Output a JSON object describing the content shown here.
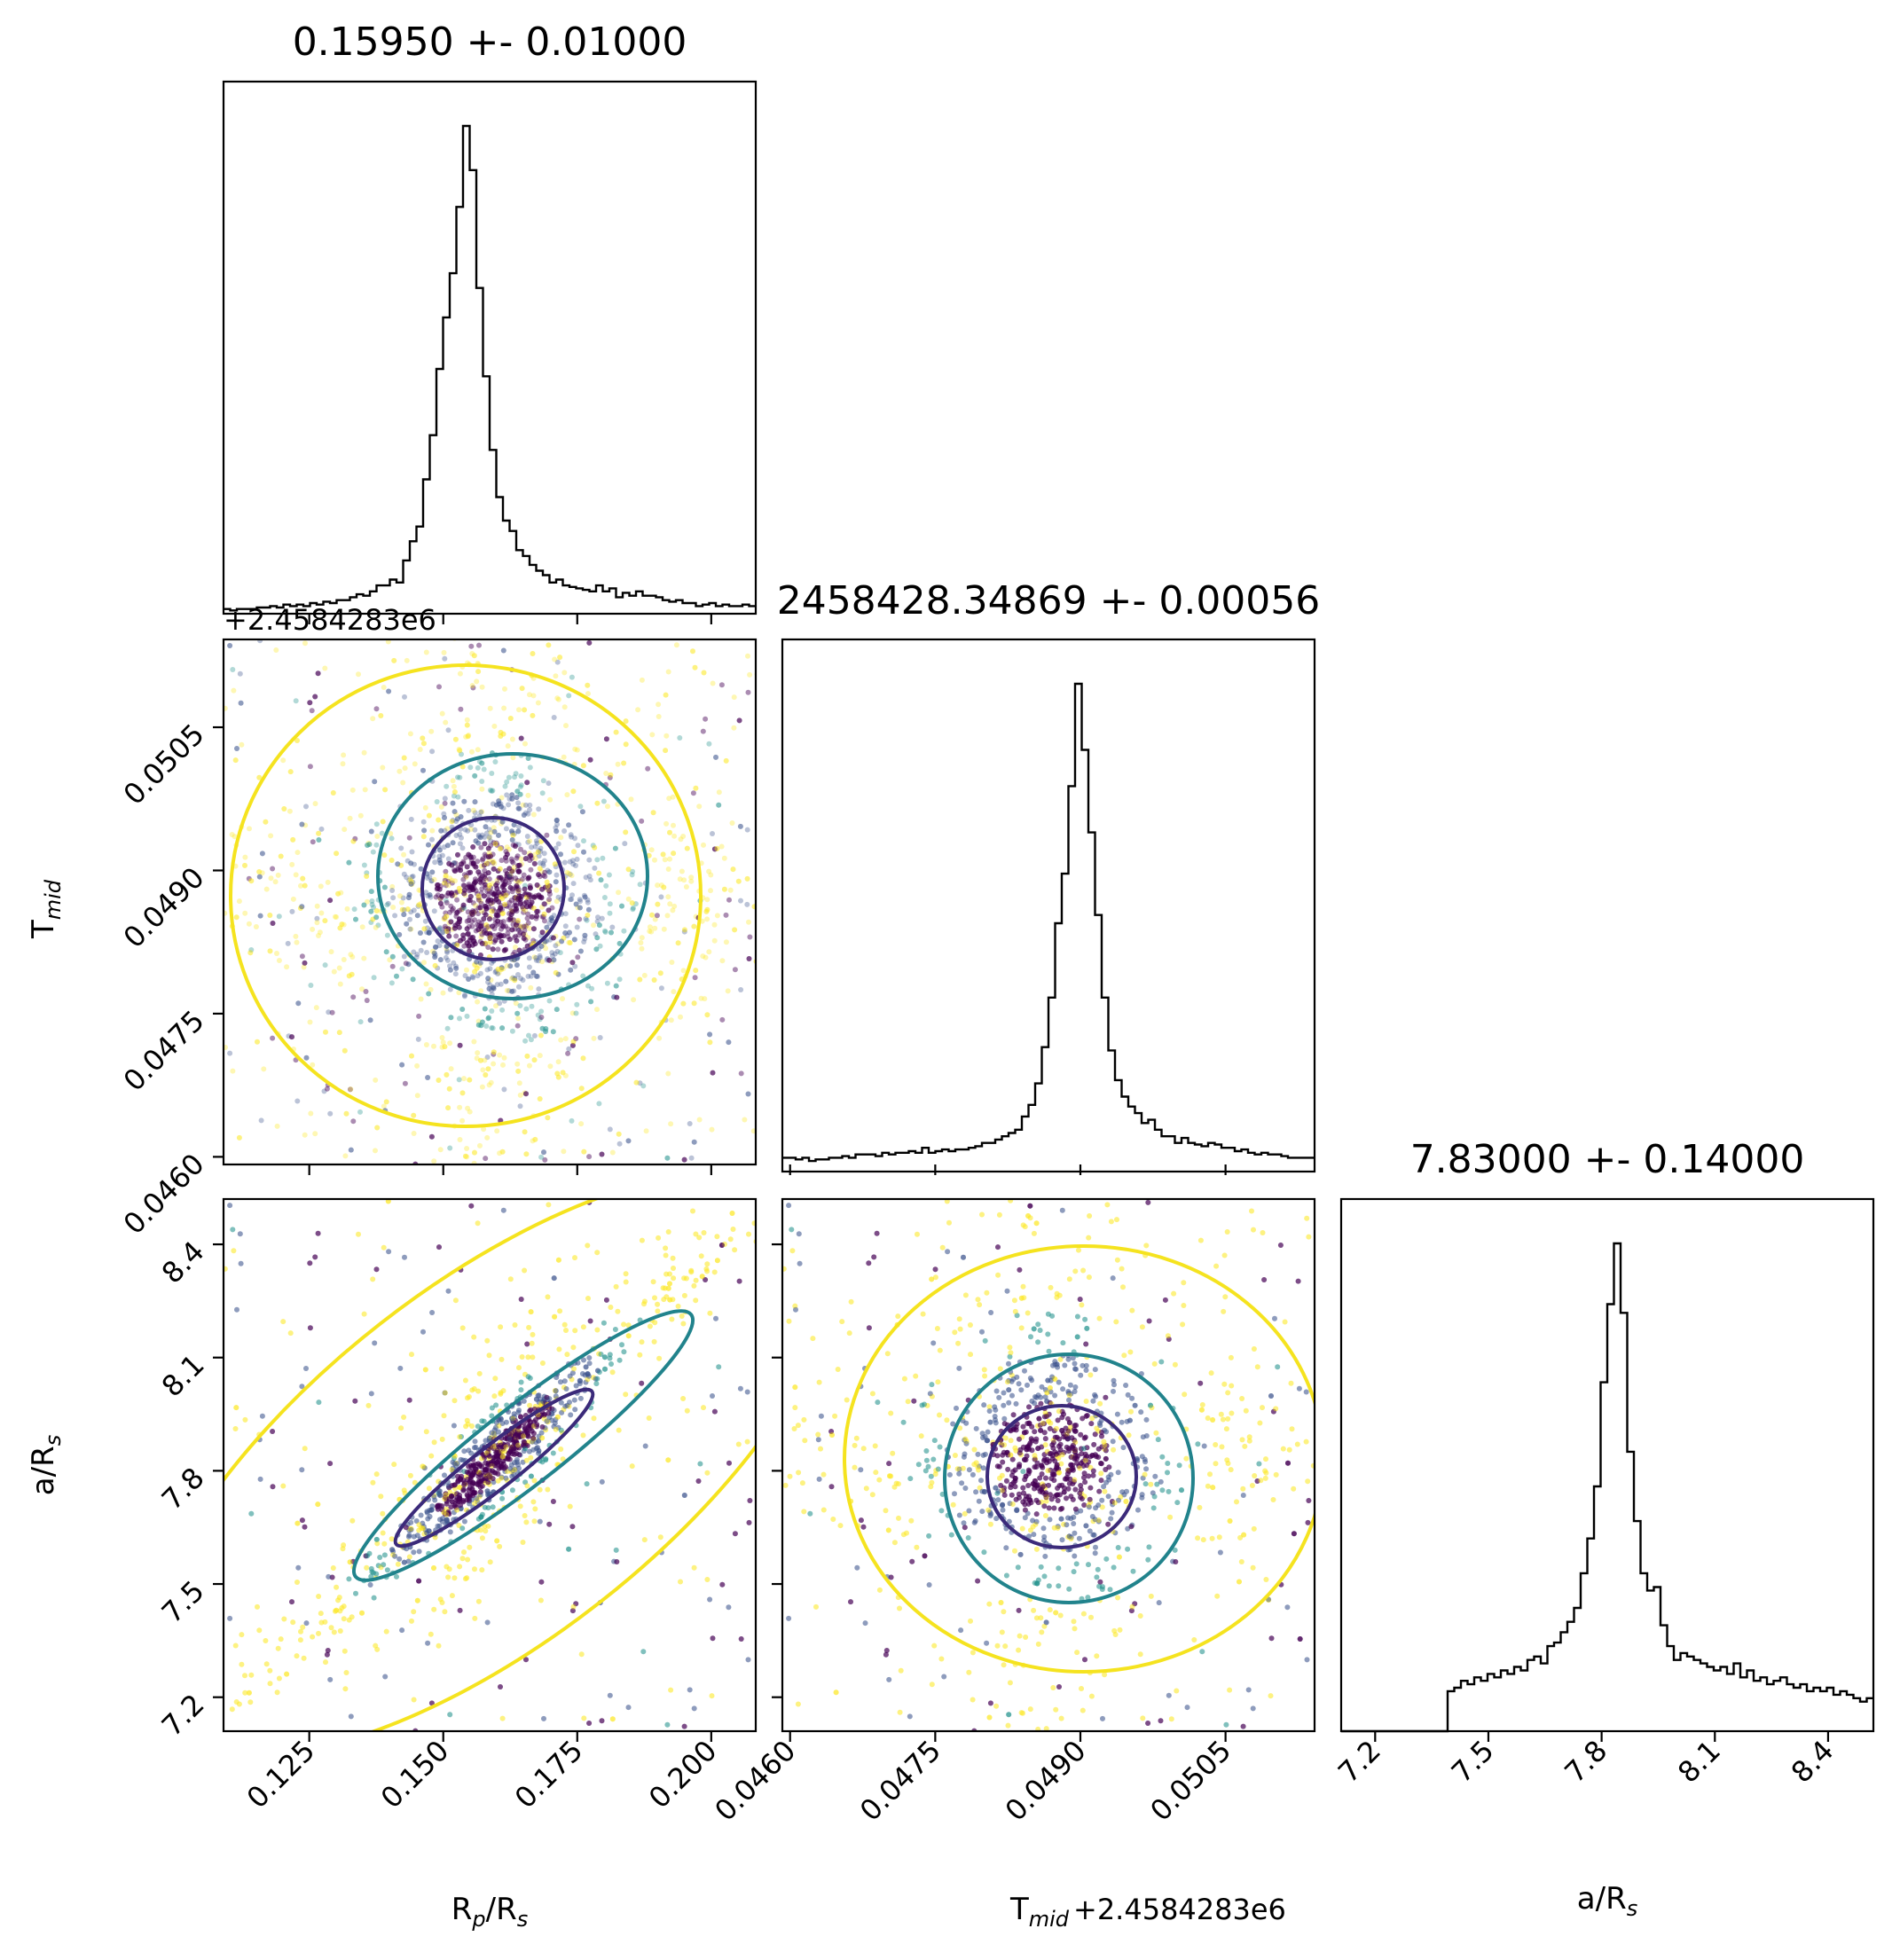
{
  "chart_data": {
    "type": "corner",
    "parameters": [
      {
        "key": "rp",
        "label_main": "R",
        "label_sub": "p",
        "label_mid": "/R",
        "label_sub2": "s",
        "mean": 0.1595,
        "sigma": 0.01,
        "title": "0.15950 +- 0.01000",
        "range": [
          0.109,
          0.2083
        ],
        "ticks": [
          "0.125",
          "0.150",
          "0.175",
          "0.200"
        ]
      },
      {
        "key": "tmid",
        "label_main": "T",
        "label_sub": "mid",
        "label_mid": "",
        "label_sub2": "",
        "offset": "+2.4584283e6",
        "mean": 0.04869,
        "sigma": 0.00056,
        "title": "2458428.34869 +- 0.00056",
        "range": [
          0.04592,
          0.05142
        ],
        "ticks": [
          "0.0460",
          "0.0475",
          "0.0490",
          "0.0505"
        ]
      },
      {
        "key": "ars",
        "label_main": "a/R",
        "label_sub": "s",
        "label_mid": "",
        "label_sub2": "",
        "mean": 7.83,
        "sigma": 0.14,
        "title": "7.83000 +- 0.14000",
        "range": [
          7.11,
          8.52
        ],
        "ticks": [
          "7.2",
          "7.5",
          "7.8",
          "8.1",
          "8.4"
        ]
      }
    ],
    "histograms": [
      {
        "param": "rp",
        "bins": [
          0.109,
          0.2083
        ],
        "counts": [
          2,
          1,
          2,
          2,
          2,
          3,
          3,
          4,
          3,
          5,
          4,
          5,
          4,
          6,
          5,
          7,
          6,
          8,
          8,
          10,
          12,
          11,
          14,
          18,
          18,
          22,
          20,
          35,
          48,
          58,
          90,
          120,
          165,
          200,
          230,
          275,
          330,
          300,
          220,
          160,
          110,
          78,
          62,
          55,
          42,
          38,
          32,
          28,
          25,
          20,
          22,
          18,
          17,
          16,
          15,
          14,
          18,
          14,
          16,
          10,
          13,
          11,
          14,
          11,
          11,
          10,
          8,
          7,
          8,
          6,
          6,
          4,
          5,
          6,
          4,
          5,
          4,
          4,
          5,
          4
        ]
      },
      {
        "param": "tmid",
        "bins": [
          0.04592,
          0.05142
        ],
        "counts": [
          3,
          3,
          2,
          3,
          1,
          2,
          2,
          3,
          3,
          4,
          3,
          5,
          5,
          5,
          4,
          6,
          5,
          6,
          6,
          7,
          6,
          9,
          6,
          7,
          8,
          7,
          8,
          8,
          9,
          10,
          12,
          12,
          14,
          16,
          18,
          20,
          28,
          35,
          48,
          70,
          100,
          145,
          175,
          228,
          290,
          250,
          200,
          150,
          100,
          68,
          50,
          40,
          34,
          30,
          24,
          26,
          20,
          16,
          16,
          12,
          15,
          12,
          11,
          10,
          12,
          11,
          9,
          9,
          7,
          8,
          6,
          5,
          6,
          5,
          5,
          4,
          3,
          3,
          3,
          3
        ]
      },
      {
        "param": "ars",
        "bins": [
          7.11,
          8.52
        ],
        "counts": [
          0,
          0,
          0,
          0,
          0,
          0,
          0,
          0,
          0,
          0,
          0,
          0,
          0,
          0,
          0,
          0,
          22,
          24,
          28,
          26,
          30,
          28,
          32,
          30,
          34,
          32,
          36,
          34,
          40,
          42,
          38,
          48,
          50,
          56,
          62,
          70,
          90,
          110,
          140,
          200,
          245,
          280,
          240,
          160,
          120,
          90,
          80,
          82,
          60,
          48,
          40,
          44,
          42,
          40,
          38,
          36,
          34,
          36,
          32,
          38,
          30,
          34,
          28,
          30,
          26,
          28,
          30,
          26,
          24,
          26,
          22,
          24,
          22,
          24,
          20,
          22,
          20,
          18,
          16,
          18
        ]
      }
    ],
    "scatter_panels": [
      {
        "x": "rp",
        "y": "tmid",
        "x_lim": [
          0.109,
          0.2083
        ],
        "y_lim": [
          0.04592,
          0.05142
        ],
        "correlation": 0.0,
        "contour_levels": [
          "inner",
          "middle",
          "outer"
        ]
      },
      {
        "x": "rp",
        "y": "ars",
        "x_lim": [
          0.109,
          0.2083
        ],
        "y_lim": [
          7.11,
          8.52
        ],
        "correlation": 0.93,
        "contour_levels": [
          "inner",
          "middle",
          "outer"
        ]
      },
      {
        "x": "tmid",
        "y": "ars",
        "x_lim": [
          0.04592,
          0.05142
        ],
        "y_lim": [
          7.11,
          8.52
        ],
        "correlation": 0.0,
        "contour_levels": [
          "inner",
          "middle",
          "outer"
        ]
      }
    ],
    "colors": {
      "inner": "#3b2a7a",
      "middle": "#21838c",
      "outer": "#f5e31f",
      "points_core": "#440154",
      "hist": "#000000"
    },
    "grid": false,
    "legend": "none"
  }
}
